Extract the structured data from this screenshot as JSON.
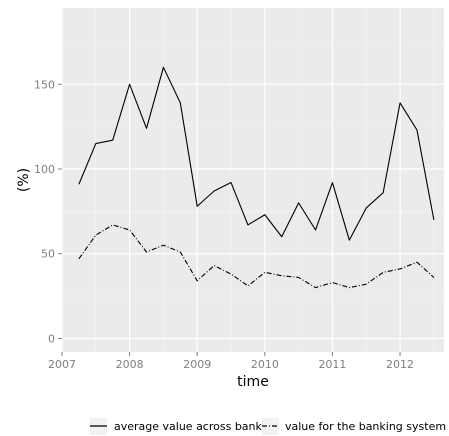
{
  "chart_data": {
    "type": "line",
    "title": "",
    "xlabel": "time",
    "ylabel": "(%)",
    "xlim": [
      2007.0,
      2012.65
    ],
    "ylim": [
      -8,
      195
    ],
    "x_ticks": [
      2007,
      2008,
      2009,
      2010,
      2011,
      2012
    ],
    "x_tick_labels": [
      "2007",
      "2008",
      "2009",
      "2010",
      "2011",
      "2012"
    ],
    "y_ticks": [
      0,
      50,
      100,
      150
    ],
    "y_tick_labels": [
      "0",
      "50",
      "100",
      "150"
    ],
    "grid": true,
    "legend_position": "bottom",
    "background": "#ebebeb",
    "series": [
      {
        "name": "average value across banks",
        "line_style": "solid",
        "color": "#000000",
        "x": [
          2007.25,
          2007.5,
          2007.75,
          2008.0,
          2008.25,
          2008.5,
          2008.75,
          2009.0,
          2009.25,
          2009.5,
          2009.75,
          2010.0,
          2010.25,
          2010.5,
          2010.75,
          2011.0,
          2011.25,
          2011.5,
          2011.75,
          2012.0,
          2012.25,
          2012.5
        ],
        "y": [
          91,
          115,
          117,
          150,
          124,
          160,
          139,
          78,
          87,
          92,
          67,
          73,
          60,
          80,
          64,
          92,
          58,
          77,
          86,
          139,
          123,
          70
        ]
      },
      {
        "name": "value for the banking system",
        "line_style": "dotdash",
        "color": "#000000",
        "x": [
          2007.25,
          2007.5,
          2007.75,
          2008.0,
          2008.25,
          2008.5,
          2008.75,
          2009.0,
          2009.25,
          2009.5,
          2009.75,
          2010.0,
          2010.25,
          2010.5,
          2010.75,
          2011.0,
          2011.25,
          2011.5,
          2011.75,
          2012.0,
          2012.25,
          2012.5
        ],
        "y": [
          47,
          61,
          67,
          64,
          51,
          55,
          51,
          34,
          43,
          38,
          31,
          39,
          37,
          36,
          30,
          33,
          30,
          32,
          39,
          41,
          45,
          36
        ]
      }
    ]
  }
}
